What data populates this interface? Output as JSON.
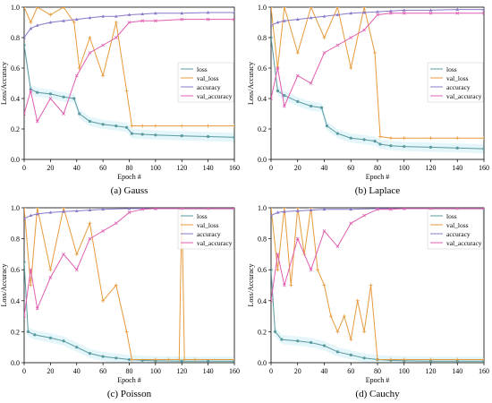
{
  "colors": {
    "loss": "#5b9aa0",
    "val_loss": "#e69a3a",
    "accuracy": "#8a78c8",
    "val_accuracy": "#e05fb0",
    "band": "#cdeff5"
  },
  "chart_data": [
    {
      "type": "line",
      "caption": "(a) Gauss",
      "xlabel": "Epoch #",
      "ylabel": "Loss/Accuracy",
      "xlim": [
        0,
        160
      ],
      "ylim": [
        0,
        1.0
      ],
      "xticks": [
        "0",
        "20",
        "40",
        "60",
        "80",
        "100",
        "120",
        "140",
        "160"
      ],
      "yticks": [
        "0.0",
        "0.2",
        "0.4",
        "0.6",
        "0.8",
        "1.0"
      ],
      "legend": {
        "position": "right",
        "labels": [
          "loss",
          "val_loss",
          "accuracy",
          "val_accuracy"
        ]
      },
      "series": [
        {
          "name": "loss",
          "x": [
            0,
            5,
            10,
            20,
            30,
            38,
            42,
            50,
            60,
            70,
            78,
            82,
            90,
            100,
            120,
            140,
            160
          ],
          "values": [
            0.75,
            0.46,
            0.44,
            0.43,
            0.41,
            0.4,
            0.3,
            0.25,
            0.23,
            0.22,
            0.21,
            0.17,
            0.165,
            0.16,
            0.155,
            0.15,
            0.145
          ]
        },
        {
          "name": "val_loss",
          "x": [
            0,
            5,
            10,
            20,
            30,
            38,
            42,
            50,
            60,
            70,
            78,
            82,
            90,
            100,
            120,
            140,
            160
          ],
          "values": [
            1.0,
            0.9,
            1.0,
            0.95,
            1.0,
            0.9,
            0.6,
            0.8,
            0.55,
            0.9,
            0.45,
            0.22,
            0.22,
            0.22,
            0.22,
            0.22,
            0.22
          ]
        },
        {
          "name": "accuracy",
          "x": [
            0,
            5,
            10,
            20,
            30,
            40,
            50,
            60,
            70,
            80,
            90,
            100,
            120,
            140,
            160
          ],
          "values": [
            0.8,
            0.86,
            0.88,
            0.9,
            0.91,
            0.92,
            0.93,
            0.94,
            0.94,
            0.95,
            0.955,
            0.96,
            0.96,
            0.965,
            0.965
          ]
        },
        {
          "name": "val_accuracy",
          "x": [
            0,
            5,
            10,
            20,
            30,
            40,
            50,
            60,
            70,
            80,
            90,
            100,
            120,
            140,
            160
          ],
          "values": [
            0.3,
            0.45,
            0.25,
            0.4,
            0.3,
            0.55,
            0.7,
            0.75,
            0.8,
            0.9,
            0.91,
            0.91,
            0.92,
            0.92,
            0.92
          ]
        }
      ]
    },
    {
      "type": "line",
      "caption": "(b) Laplace",
      "xlabel": "Epoch #",
      "ylabel": "Loss/Accuracy",
      "xlim": [
        0,
        160
      ],
      "ylim": [
        0,
        1.0
      ],
      "xticks": [
        "0",
        "20",
        "40",
        "60",
        "80",
        "100",
        "120",
        "140",
        "160"
      ],
      "yticks": [
        "0.0",
        "0.2",
        "0.4",
        "0.6",
        "0.8",
        "1.0"
      ],
      "legend": {
        "position": "right",
        "labels": [
          "loss",
          "val_loss",
          "accuracy",
          "val_accuracy"
        ]
      },
      "series": [
        {
          "name": "loss",
          "x": [
            0,
            5,
            10,
            20,
            30,
            38,
            42,
            50,
            60,
            70,
            78,
            82,
            90,
            100,
            120,
            140,
            160
          ],
          "values": [
            0.8,
            0.45,
            0.42,
            0.38,
            0.35,
            0.34,
            0.22,
            0.17,
            0.14,
            0.13,
            0.12,
            0.1,
            0.09,
            0.085,
            0.08,
            0.075,
            0.07
          ]
        },
        {
          "name": "val_loss",
          "x": [
            0,
            5,
            10,
            20,
            30,
            40,
            50,
            60,
            70,
            78,
            82,
            90,
            100,
            120,
            140,
            160
          ],
          "values": [
            1.0,
            0.6,
            1.0,
            0.7,
            1.0,
            0.8,
            1.0,
            0.6,
            1.0,
            0.7,
            0.15,
            0.14,
            0.14,
            0.14,
            0.14,
            0.14
          ]
        },
        {
          "name": "accuracy",
          "x": [
            0,
            5,
            10,
            20,
            30,
            40,
            50,
            60,
            70,
            80,
            90,
            100,
            120,
            140,
            160
          ],
          "values": [
            0.88,
            0.9,
            0.91,
            0.92,
            0.93,
            0.94,
            0.95,
            0.96,
            0.965,
            0.97,
            0.975,
            0.98,
            0.98,
            0.985,
            0.985
          ]
        },
        {
          "name": "val_accuracy",
          "x": [
            0,
            5,
            10,
            20,
            30,
            40,
            50,
            60,
            70,
            80,
            90,
            100,
            120,
            140,
            160
          ],
          "values": [
            0.4,
            0.6,
            0.35,
            0.55,
            0.5,
            0.7,
            0.75,
            0.8,
            0.85,
            0.95,
            0.96,
            0.96,
            0.96,
            0.96,
            0.96
          ]
        }
      ]
    },
    {
      "type": "line",
      "caption": "(c) Poisson",
      "xlabel": "Epoch #",
      "ylabel": "Loss/Accuracy",
      "xlim": [
        0,
        160
      ],
      "ylim": [
        0,
        1.0
      ],
      "xticks": [
        "0",
        "20",
        "40",
        "60",
        "80",
        "100",
        "120",
        "140",
        "160"
      ],
      "yticks": [
        "0.0",
        "0.2",
        "0.4",
        "0.6",
        "0.8",
        "1.0"
      ],
      "legend": {
        "position": "top-right",
        "labels": [
          "loss",
          "val_loss",
          "accuracy",
          "val_accuracy"
        ]
      },
      "series": [
        {
          "name": "loss",
          "x": [
            0,
            3,
            8,
            20,
            30,
            40,
            50,
            60,
            70,
            80,
            90,
            100,
            120,
            140,
            160
          ],
          "values": [
            0.65,
            0.2,
            0.18,
            0.16,
            0.14,
            0.1,
            0.06,
            0.04,
            0.03,
            0.02,
            0.015,
            0.012,
            0.01,
            0.01,
            0.01
          ]
        },
        {
          "name": "val_loss",
          "x": [
            0,
            5,
            10,
            20,
            30,
            40,
            50,
            60,
            70,
            78,
            82,
            100,
            110,
            118,
            120,
            122,
            130,
            160
          ],
          "values": [
            1.0,
            0.5,
            1.0,
            0.6,
            1.0,
            0.7,
            0.9,
            0.4,
            0.5,
            0.2,
            0.02,
            0.02,
            0.02,
            0.02,
            1.0,
            0.02,
            0.02,
            0.02
          ]
        },
        {
          "name": "accuracy",
          "x": [
            0,
            5,
            10,
            20,
            30,
            40,
            50,
            60,
            80,
            100,
            120,
            140,
            160
          ],
          "values": [
            0.93,
            0.95,
            0.96,
            0.97,
            0.975,
            0.98,
            0.985,
            0.99,
            0.995,
            0.995,
            0.995,
            0.995,
            0.995
          ]
        },
        {
          "name": "val_accuracy",
          "x": [
            0,
            5,
            10,
            20,
            30,
            40,
            50,
            60,
            70,
            80,
            90,
            100,
            120,
            140,
            160
          ],
          "values": [
            0.3,
            0.6,
            0.35,
            0.55,
            0.7,
            0.6,
            0.8,
            0.85,
            0.9,
            0.97,
            0.99,
            0.995,
            0.995,
            0.995,
            0.995
          ]
        }
      ]
    },
    {
      "type": "line",
      "caption": "(d) Cauchy",
      "xlabel": "Epoch #",
      "ylabel": "Loss/Accuracy",
      "xlim": [
        0,
        160
      ],
      "ylim": [
        0,
        1.0
      ],
      "xticks": [
        "0",
        "20",
        "40",
        "60",
        "80",
        "100",
        "120",
        "140",
        "160"
      ],
      "yticks": [
        "0.0",
        "0.2",
        "0.4",
        "0.6",
        "0.8",
        "1.0"
      ],
      "legend": {
        "position": "top-right",
        "labels": [
          "loss",
          "val_loss",
          "accuracy",
          "val_accuracy"
        ]
      },
      "series": [
        {
          "name": "loss",
          "x": [
            0,
            3,
            8,
            20,
            30,
            40,
            50,
            60,
            70,
            80,
            90,
            100,
            120,
            140,
            160
          ],
          "values": [
            0.6,
            0.2,
            0.15,
            0.14,
            0.13,
            0.11,
            0.07,
            0.05,
            0.03,
            0.02,
            0.015,
            0.012,
            0.01,
            0.01,
            0.01
          ]
        },
        {
          "name": "val_loss",
          "x": [
            0,
            5,
            10,
            15,
            20,
            25,
            30,
            35,
            40,
            45,
            50,
            55,
            60,
            65,
            70,
            75,
            80,
            90,
            100,
            120,
            140,
            160
          ],
          "values": [
            1.0,
            0.6,
            1.0,
            0.5,
            1.0,
            0.7,
            1.0,
            0.6,
            0.5,
            0.3,
            0.2,
            0.3,
            0.15,
            0.4,
            0.2,
            0.5,
            0.02,
            0.02,
            0.02,
            0.02,
            0.02,
            0.02
          ]
        },
        {
          "name": "accuracy",
          "x": [
            0,
            5,
            10,
            20,
            30,
            40,
            60,
            80,
            100,
            120,
            140,
            160
          ],
          "values": [
            0.95,
            0.97,
            0.975,
            0.98,
            0.985,
            0.99,
            0.99,
            0.995,
            0.995,
            0.995,
            0.995,
            0.995
          ]
        },
        {
          "name": "val_accuracy",
          "x": [
            0,
            5,
            10,
            20,
            30,
            40,
            50,
            60,
            70,
            80,
            90,
            100,
            120,
            140,
            160
          ],
          "values": [
            0.4,
            0.7,
            0.5,
            0.8,
            0.6,
            0.85,
            0.75,
            0.9,
            0.95,
            0.99,
            0.99,
            0.995,
            0.995,
            0.995,
            0.995
          ]
        }
      ]
    }
  ]
}
